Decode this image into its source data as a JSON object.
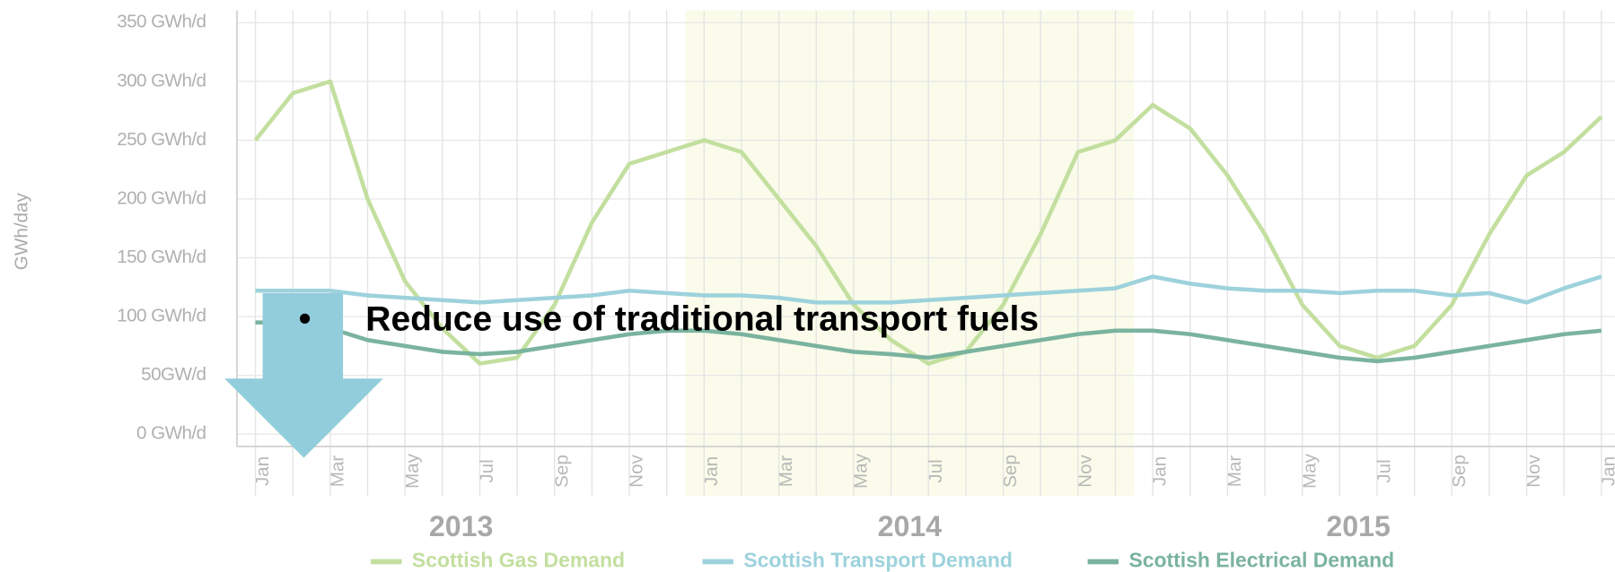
{
  "chart_data": {
    "type": "line",
    "y_label": "GWh/day",
    "categories": [
      "Jan",
      null,
      "Mar",
      null,
      "May",
      null,
      "Jul",
      null,
      "Sep",
      null,
      "Nov",
      null,
      "Jan",
      null,
      "Mar",
      null,
      "May",
      null,
      "Jul",
      null,
      "Sep",
      null,
      "Nov",
      null,
      "Jan",
      null,
      "Mar",
      null,
      "May",
      null,
      "Jul",
      null,
      "Sep",
      null,
      "Nov",
      null,
      "Jan"
    ],
    "years": [
      "2013",
      "2014",
      "2015"
    ],
    "ylim": [
      0,
      350
    ],
    "yticks": [
      {
        "value": 0,
        "label": "0 GWh/d"
      },
      {
        "value": 50,
        "label": "50GW/d"
      },
      {
        "value": 100,
        "label": "100 GWh/d"
      },
      {
        "value": 150,
        "label": "150 GWh/d"
      },
      {
        "value": 200,
        "label": "200 GWh/d"
      },
      {
        "value": 250,
        "label": "250 GWh/d"
      },
      {
        "value": 300,
        "label": "300 GWh/d"
      },
      {
        "value": 350,
        "label": "350 GWh/d"
      }
    ],
    "grid": true,
    "legend": "bottom",
    "series": [
      {
        "name": "Scottish Gas Demand",
        "color": "#c3df9f",
        "values": [
          250,
          290,
          300,
          200,
          130,
          90,
          60,
          65,
          110,
          180,
          230,
          240,
          250,
          240,
          200,
          160,
          110,
          80,
          60,
          70,
          110,
          170,
          240,
          250,
          280,
          260,
          220,
          170,
          110,
          75,
          65,
          75,
          110,
          170,
          220,
          240,
          270
        ]
      },
      {
        "name": "Scottish Transport Demand",
        "color": "#9dd2dc",
        "values": [
          122,
          122,
          122,
          118,
          116,
          114,
          112,
          114,
          116,
          118,
          122,
          120,
          118,
          118,
          116,
          112,
          112,
          112,
          114,
          116,
          118,
          120,
          122,
          124,
          134,
          128,
          124,
          122,
          122,
          120,
          122,
          122,
          118,
          120,
          112,
          124,
          134
        ]
      },
      {
        "name": "Scottish Electrical Demand",
        "color": "#7ab39f",
        "values": [
          95,
          95,
          90,
          80,
          75,
          70,
          68,
          70,
          75,
          80,
          85,
          88,
          88,
          85,
          80,
          75,
          70,
          68,
          65,
          70,
          75,
          80,
          85,
          88,
          88,
          85,
          80,
          75,
          70,
          65,
          62,
          65,
          70,
          75,
          80,
          85,
          88
        ]
      }
    ]
  },
  "overlay": {
    "bullet": "•",
    "text": "Reduce use of traditional transport fuels"
  }
}
